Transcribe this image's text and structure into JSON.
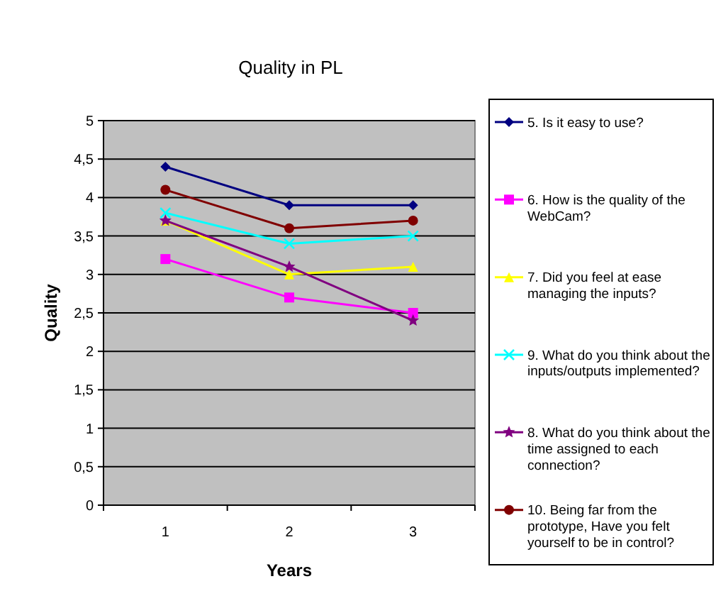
{
  "chart_data": {
    "type": "line",
    "title": "Quality in PL",
    "xlabel": "Years",
    "ylabel": "Quality",
    "categories": [
      "1",
      "2",
      "3"
    ],
    "series": [
      {
        "name": "5. Is it easy to use?",
        "color": "#000080",
        "marker": "diamond",
        "values": [
          4.4,
          3.9,
          3.9
        ]
      },
      {
        "name": "6. How is the quality of the WebCam?",
        "color": "#ff00ff",
        "marker": "square",
        "values": [
          3.2,
          2.7,
          2.5
        ]
      },
      {
        "name": "7. Did you feel at ease managing the inputs?",
        "color": "#ffff00",
        "marker": "triangle",
        "values": [
          3.7,
          3.0,
          3.1
        ]
      },
      {
        "name": "9. What do you think about the inputs/outputs implemented?",
        "color": "#00ffff",
        "marker": "cross",
        "values": [
          3.8,
          3.4,
          3.5
        ]
      },
      {
        "name": "8. What do you think about the time assigned to each connection?",
        "color": "#800080",
        "marker": "star",
        "values": [
          3.7,
          3.1,
          2.4
        ]
      },
      {
        "name": "10. Being far from the prototype, Have you felt yourself to be in control?",
        "color": "#800000",
        "marker": "circle",
        "values": [
          4.1,
          3.6,
          3.7
        ]
      }
    ],
    "ylim": [
      0,
      5
    ],
    "yticks": [
      0,
      {
        "value": 0.5,
        "label": "0,5"
      },
      1,
      {
        "value": 1.5,
        "label": "1,5"
      },
      2,
      {
        "value": 2.5,
        "label": "2,5"
      },
      3,
      {
        "value": 3.5,
        "label": "3,5"
      },
      4,
      {
        "value": 4.5,
        "label": "4,5"
      },
      5
    ],
    "grid": "y",
    "legend": "right"
  }
}
